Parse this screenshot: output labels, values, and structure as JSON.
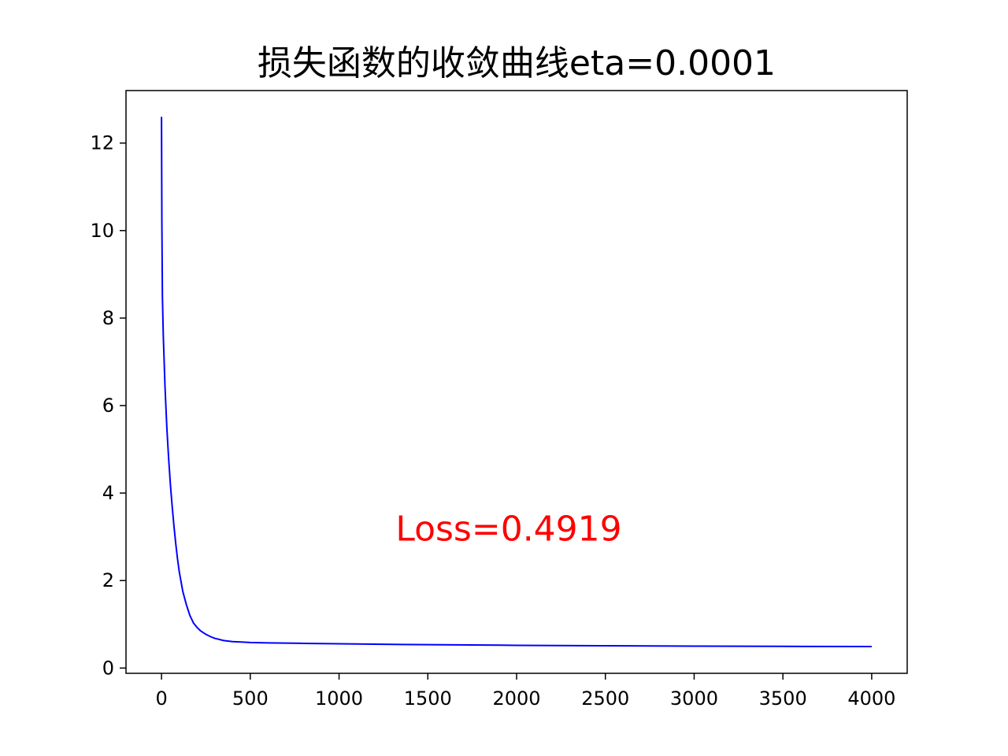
{
  "chart_data": {
    "type": "line",
    "title": "损失函数的收敛曲线eta=0.0001",
    "xlabel": "",
    "ylabel": "",
    "xlim": [
      -200,
      4200
    ],
    "ylim": [
      -0.12,
      13.2
    ],
    "grid": false,
    "x_ticks": [
      0,
      500,
      1000,
      1500,
      2000,
      2500,
      3000,
      3500,
      4000
    ],
    "y_ticks": [
      0,
      2,
      4,
      6,
      8,
      10,
      12
    ],
    "series": [
      {
        "color": "#0000ff",
        "x": [
          0,
          2,
          5,
          10,
          20,
          30,
          40,
          50,
          60,
          70,
          80,
          90,
          100,
          120,
          140,
          160,
          180,
          200,
          220,
          250,
          280,
          300,
          350,
          400,
          450,
          500,
          600,
          700,
          800,
          1000,
          1200,
          1500,
          2000,
          2500,
          3000,
          3500,
          4000
        ],
        "y": [
          12.6,
          10.2,
          8.5,
          7.6,
          6.4,
          5.5,
          4.8,
          4.2,
          3.7,
          3.25,
          2.85,
          2.5,
          2.2,
          1.75,
          1.45,
          1.2,
          1.03,
          0.93,
          0.85,
          0.77,
          0.71,
          0.68,
          0.63,
          0.605,
          0.595,
          0.585,
          0.575,
          0.57,
          0.565,
          0.555,
          0.545,
          0.535,
          0.52,
          0.51,
          0.502,
          0.496,
          0.4919
        ]
      }
    ],
    "annotations": [
      {
        "text": "Loss=0.4919",
        "x": 2000,
        "y": 3.2,
        "color": "#ff0000"
      }
    ]
  }
}
